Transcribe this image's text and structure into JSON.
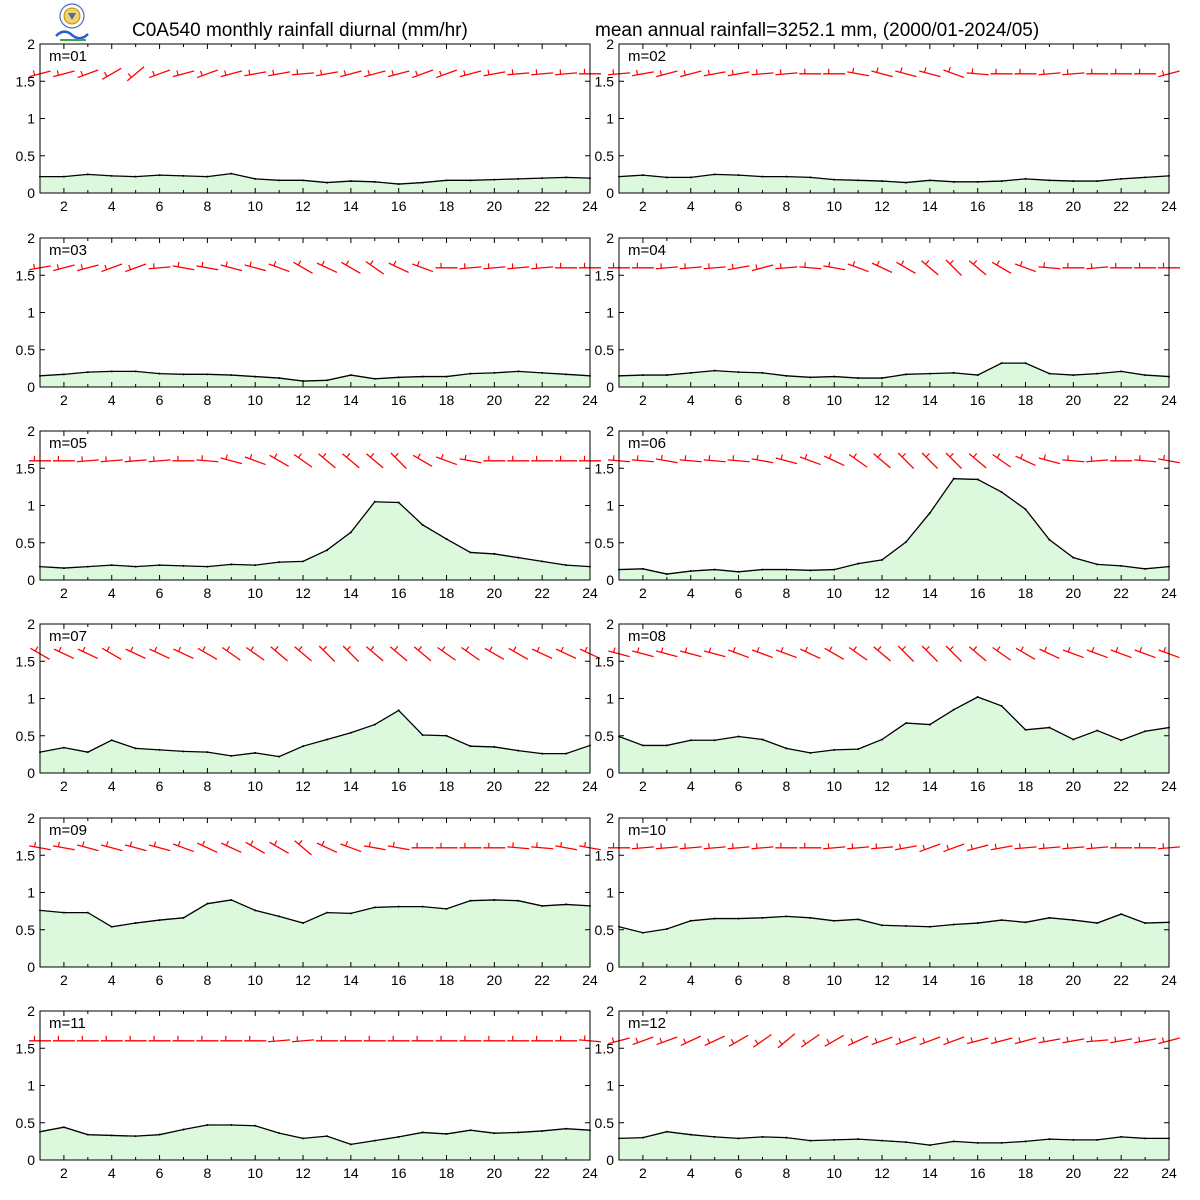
{
  "header": {
    "title_left": "C0A540 monthly rainfall diurnal (mm/hr)",
    "title_right": "mean annual rainfall=3252.1 mm, (2000/01-2024/05)"
  },
  "colors": {
    "fill": "#ddf9dd",
    "line": "#000000",
    "wind": "#ff0000"
  },
  "chart_data": [
    {
      "type": "area",
      "label": "m=01",
      "x": [
        1,
        2,
        3,
        4,
        5,
        6,
        7,
        8,
        9,
        10,
        11,
        12,
        13,
        14,
        15,
        16,
        17,
        18,
        19,
        20,
        21,
        22,
        23,
        24
      ],
      "values": [
        0.22,
        0.22,
        0.25,
        0.23,
        0.22,
        0.24,
        0.23,
        0.22,
        0.26,
        0.19,
        0.17,
        0.17,
        0.14,
        0.16,
        0.15,
        0.12,
        0.14,
        0.17,
        0.17,
        0.18,
        0.19,
        0.2,
        0.21,
        0.2
      ],
      "wind_angles": [
        15,
        15,
        20,
        30,
        40,
        20,
        15,
        20,
        15,
        10,
        10,
        5,
        10,
        15,
        15,
        15,
        20,
        20,
        15,
        10,
        5,
        5,
        5,
        0
      ],
      "ylim": [
        0,
        2
      ],
      "xticks": [
        2,
        4,
        6,
        8,
        10,
        12,
        14,
        16,
        18,
        20,
        22,
        24
      ],
      "yticks": [
        0,
        0.5,
        1,
        1.5,
        2
      ]
    },
    {
      "type": "area",
      "label": "m=02",
      "x": [
        1,
        2,
        3,
        4,
        5,
        6,
        7,
        8,
        9,
        10,
        11,
        12,
        13,
        14,
        15,
        16,
        17,
        18,
        19,
        20,
        21,
        22,
        23,
        24
      ],
      "values": [
        0.22,
        0.24,
        0.21,
        0.21,
        0.25,
        0.24,
        0.22,
        0.22,
        0.21,
        0.18,
        0.17,
        0.16,
        0.14,
        0.17,
        0.15,
        0.15,
        0.16,
        0.19,
        0.17,
        0.16,
        0.16,
        0.19,
        0.21,
        0.23
      ],
      "wind_angles": [
        5,
        10,
        15,
        15,
        10,
        10,
        5,
        5,
        0,
        0,
        -10,
        -15,
        -15,
        -15,
        -20,
        -5,
        0,
        0,
        5,
        5,
        0,
        0,
        0,
        15
      ],
      "ylim": [
        0,
        2
      ],
      "xticks": [
        2,
        4,
        6,
        8,
        10,
        12,
        14,
        16,
        18,
        20,
        22,
        24
      ],
      "yticks": [
        0,
        0.5,
        1,
        1.5,
        2
      ]
    },
    {
      "type": "area",
      "label": "m=03",
      "x": [
        1,
        2,
        3,
        4,
        5,
        6,
        7,
        8,
        9,
        10,
        11,
        12,
        13,
        14,
        15,
        16,
        17,
        18,
        19,
        20,
        21,
        22,
        23,
        24
      ],
      "values": [
        0.15,
        0.17,
        0.2,
        0.21,
        0.21,
        0.18,
        0.17,
        0.17,
        0.16,
        0.14,
        0.12,
        0.08,
        0.09,
        0.16,
        0.11,
        0.13,
        0.14,
        0.14,
        0.18,
        0.19,
        0.21,
        0.19,
        0.17,
        0.15
      ],
      "wind_angles": [
        10,
        15,
        15,
        20,
        20,
        5,
        -10,
        -10,
        -15,
        -15,
        -20,
        -30,
        -25,
        -30,
        -35,
        -25,
        -20,
        0,
        5,
        5,
        5,
        5,
        0,
        0
      ],
      "ylim": [
        0,
        2
      ],
      "xticks": [
        2,
        4,
        6,
        8,
        10,
        12,
        14,
        16,
        18,
        20,
        22,
        24
      ],
      "yticks": [
        0,
        0.5,
        1,
        1.5,
        2
      ]
    },
    {
      "type": "area",
      "label": "m=04",
      "x": [
        1,
        2,
        3,
        4,
        5,
        6,
        7,
        8,
        9,
        10,
        11,
        12,
        13,
        14,
        15,
        16,
        17,
        18,
        19,
        20,
        21,
        22,
        23,
        24
      ],
      "values": [
        0.15,
        0.16,
        0.16,
        0.19,
        0.22,
        0.2,
        0.19,
        0.15,
        0.13,
        0.14,
        0.12,
        0.12,
        0.17,
        0.18,
        0.19,
        0.16,
        0.32,
        0.32,
        0.18,
        0.16,
        0.18,
        0.21,
        0.16,
        0.14
      ],
      "wind_angles": [
        0,
        0,
        5,
        5,
        5,
        10,
        15,
        5,
        -5,
        -10,
        -20,
        -25,
        -30,
        -40,
        -45,
        -40,
        -30,
        -20,
        -5,
        0,
        5,
        0,
        0,
        0
      ],
      "ylim": [
        0,
        2
      ],
      "xticks": [
        2,
        4,
        6,
        8,
        10,
        12,
        14,
        16,
        18,
        20,
        22,
        24
      ],
      "yticks": [
        0,
        0.5,
        1,
        1.5,
        2
      ]
    },
    {
      "type": "area",
      "label": "m=05",
      "x": [
        1,
        2,
        3,
        4,
        5,
        6,
        7,
        8,
        9,
        10,
        11,
        12,
        13,
        14,
        15,
        16,
        17,
        18,
        19,
        20,
        21,
        22,
        23,
        24
      ],
      "values": [
        0.18,
        0.16,
        0.18,
        0.2,
        0.18,
        0.2,
        0.19,
        0.18,
        0.21,
        0.2,
        0.24,
        0.25,
        0.4,
        0.64,
        1.05,
        1.04,
        0.74,
        0.55,
        0.37,
        0.35,
        0.3,
        0.25,
        0.2,
        0.18
      ],
      "wind_angles": [
        0,
        0,
        5,
        5,
        5,
        5,
        0,
        -5,
        -15,
        -20,
        -30,
        -35,
        -40,
        -40,
        -40,
        -45,
        -30,
        -20,
        -10,
        0,
        0,
        0,
        0,
        0
      ],
      "ylim": [
        0,
        2
      ],
      "xticks": [
        2,
        4,
        6,
        8,
        10,
        12,
        14,
        16,
        18,
        20,
        22,
        24
      ],
      "yticks": [
        0,
        0.5,
        1,
        1.5,
        2
      ]
    },
    {
      "type": "area",
      "label": "m=06",
      "x": [
        1,
        2,
        3,
        4,
        5,
        6,
        7,
        8,
        9,
        10,
        11,
        12,
        13,
        14,
        15,
        16,
        17,
        18,
        19,
        20,
        21,
        22,
        23,
        24
      ],
      "values": [
        0.14,
        0.15,
        0.08,
        0.12,
        0.14,
        0.11,
        0.14,
        0.14,
        0.13,
        0.14,
        0.22,
        0.27,
        0.51,
        0.9,
        1.36,
        1.35,
        1.18,
        0.95,
        0.54,
        0.3,
        0.21,
        0.19,
        0.15,
        0.18
      ],
      "wind_angles": [
        -5,
        -5,
        -10,
        -5,
        -5,
        -5,
        -10,
        -15,
        -20,
        -25,
        -35,
        -40,
        -45,
        -45,
        -45,
        -40,
        -35,
        -25,
        -15,
        -5,
        5,
        0,
        -5,
        -10
      ],
      "ylim": [
        0,
        2
      ],
      "xticks": [
        2,
        4,
        6,
        8,
        10,
        12,
        14,
        16,
        18,
        20,
        22,
        24
      ],
      "yticks": [
        0,
        0.5,
        1,
        1.5,
        2
      ]
    },
    {
      "type": "area",
      "label": "m=07",
      "x": [
        1,
        2,
        3,
        4,
        5,
        6,
        7,
        8,
        9,
        10,
        11,
        12,
        13,
        14,
        15,
        16,
        17,
        18,
        19,
        20,
        21,
        22,
        23,
        24
      ],
      "values": [
        0.28,
        0.34,
        0.28,
        0.44,
        0.33,
        0.31,
        0.29,
        0.28,
        0.23,
        0.27,
        0.22,
        0.36,
        0.45,
        0.54,
        0.65,
        0.84,
        0.51,
        0.5,
        0.36,
        0.35,
        0.3,
        0.26,
        0.26,
        0.37
      ],
      "wind_angles": [
        -30,
        -25,
        -25,
        -30,
        -25,
        -25,
        -25,
        -30,
        -35,
        -35,
        -40,
        -40,
        -45,
        -45,
        -40,
        -40,
        -40,
        -35,
        -35,
        -30,
        -30,
        -25,
        -25,
        -25
      ],
      "ylim": [
        0,
        2
      ],
      "xticks": [
        2,
        4,
        6,
        8,
        10,
        12,
        14,
        16,
        18,
        20,
        22,
        24
      ],
      "yticks": [
        0,
        0.5,
        1,
        1.5,
        2
      ]
    },
    {
      "type": "area",
      "label": "m=08",
      "x": [
        1,
        2,
        3,
        4,
        5,
        6,
        7,
        8,
        9,
        10,
        11,
        12,
        13,
        14,
        15,
        16,
        17,
        18,
        19,
        20,
        21,
        22,
        23,
        24
      ],
      "values": [
        0.49,
        0.37,
        0.37,
        0.44,
        0.44,
        0.49,
        0.45,
        0.33,
        0.27,
        0.31,
        0.32,
        0.45,
        0.67,
        0.65,
        0.85,
        1.02,
        0.9,
        0.58,
        0.61,
        0.45,
        0.57,
        0.44,
        0.56,
        0.61
      ],
      "wind_angles": [
        -15,
        -15,
        -15,
        -15,
        -15,
        -20,
        -20,
        -20,
        -25,
        -30,
        -35,
        -40,
        -45,
        -45,
        -45,
        -40,
        -35,
        -30,
        -25,
        -20,
        -20,
        -20,
        -20,
        -20
      ],
      "ylim": [
        0,
        2
      ],
      "xticks": [
        2,
        4,
        6,
        8,
        10,
        12,
        14,
        16,
        18,
        20,
        22,
        24
      ],
      "yticks": [
        0,
        0.5,
        1,
        1.5,
        2
      ]
    },
    {
      "type": "area",
      "label": "m=09",
      "x": [
        1,
        2,
        3,
        4,
        5,
        6,
        7,
        8,
        9,
        10,
        11,
        12,
        13,
        14,
        15,
        16,
        17,
        18,
        19,
        20,
        21,
        22,
        23,
        24
      ],
      "values": [
        0.76,
        0.73,
        0.73,
        0.54,
        0.59,
        0.63,
        0.66,
        0.85,
        0.9,
        0.76,
        0.68,
        0.59,
        0.73,
        0.72,
        0.8,
        0.81,
        0.81,
        0.78,
        0.89,
        0.9,
        0.89,
        0.82,
        0.84,
        0.82
      ],
      "wind_angles": [
        -10,
        -10,
        -15,
        -15,
        -15,
        -15,
        -20,
        -25,
        -25,
        -30,
        -30,
        -40,
        -25,
        -20,
        -10,
        -10,
        0,
        0,
        0,
        0,
        -5,
        -5,
        -10,
        -10
      ],
      "ylim": [
        0,
        2
      ],
      "xticks": [
        2,
        4,
        6,
        8,
        10,
        12,
        14,
        16,
        18,
        20,
        22,
        24
      ],
      "yticks": [
        0,
        0.5,
        1,
        1.5,
        2
      ]
    },
    {
      "type": "area",
      "label": "m=10",
      "x": [
        1,
        2,
        3,
        4,
        5,
        6,
        7,
        8,
        9,
        10,
        11,
        12,
        13,
        14,
        15,
        16,
        17,
        18,
        19,
        20,
        21,
        22,
        23,
        24
      ],
      "values": [
        0.54,
        0.46,
        0.51,
        0.62,
        0.65,
        0.65,
        0.66,
        0.68,
        0.66,
        0.62,
        0.64,
        0.56,
        0.55,
        0.54,
        0.57,
        0.59,
        0.63,
        0.6,
        0.66,
        0.63,
        0.59,
        0.71,
        0.59,
        0.6
      ],
      "wind_angles": [
        0,
        5,
        5,
        5,
        5,
        5,
        5,
        0,
        0,
        5,
        5,
        5,
        10,
        20,
        20,
        15,
        10,
        5,
        5,
        5,
        5,
        0,
        0,
        5
      ],
      "ylim": [
        0,
        2
      ],
      "xticks": [
        2,
        4,
        6,
        8,
        10,
        12,
        14,
        16,
        18,
        20,
        22,
        24
      ],
      "yticks": [
        0,
        0.5,
        1,
        1.5,
        2
      ]
    },
    {
      "type": "area",
      "label": "m=11",
      "x": [
        1,
        2,
        3,
        4,
        5,
        6,
        7,
        8,
        9,
        10,
        11,
        12,
        13,
        14,
        15,
        16,
        17,
        18,
        19,
        20,
        21,
        22,
        23,
        24
      ],
      "values": [
        0.38,
        0.44,
        0.34,
        0.33,
        0.32,
        0.34,
        0.41,
        0.47,
        0.47,
        0.46,
        0.36,
        0.29,
        0.32,
        0.21,
        0.26,
        0.31,
        0.37,
        0.35,
        0.4,
        0.36,
        0.37,
        0.39,
        0.42,
        0.4
      ],
      "wind_angles": [
        0,
        0,
        0,
        0,
        0,
        0,
        0,
        0,
        0,
        0,
        5,
        5,
        0,
        0,
        0,
        0,
        0,
        0,
        0,
        0,
        0,
        0,
        0,
        -5
      ],
      "ylim": [
        0,
        2
      ],
      "xticks": [
        2,
        4,
        6,
        8,
        10,
        12,
        14,
        16,
        18,
        20,
        22,
        24
      ],
      "yticks": [
        0,
        0.5,
        1,
        1.5,
        2
      ]
    },
    {
      "type": "area",
      "label": "m=12",
      "x": [
        1,
        2,
        3,
        4,
        5,
        6,
        7,
        8,
        9,
        10,
        11,
        12,
        13,
        14,
        15,
        16,
        17,
        18,
        19,
        20,
        21,
        22,
        23,
        24
      ],
      "values": [
        0.29,
        0.3,
        0.38,
        0.34,
        0.31,
        0.29,
        0.31,
        0.3,
        0.26,
        0.27,
        0.28,
        0.26,
        0.24,
        0.2,
        0.25,
        0.23,
        0.23,
        0.25,
        0.28,
        0.27,
        0.27,
        0.31,
        0.29,
        0.29
      ],
      "wind_angles": [
        15,
        20,
        20,
        25,
        25,
        30,
        35,
        40,
        35,
        30,
        25,
        20,
        20,
        20,
        20,
        15,
        15,
        15,
        10,
        10,
        5,
        10,
        10,
        15
      ],
      "ylim": [
        0,
        2
      ],
      "xticks": [
        2,
        4,
        6,
        8,
        10,
        12,
        14,
        16,
        18,
        20,
        22,
        24
      ],
      "yticks": [
        0,
        0.5,
        1,
        1.5,
        2
      ]
    }
  ]
}
